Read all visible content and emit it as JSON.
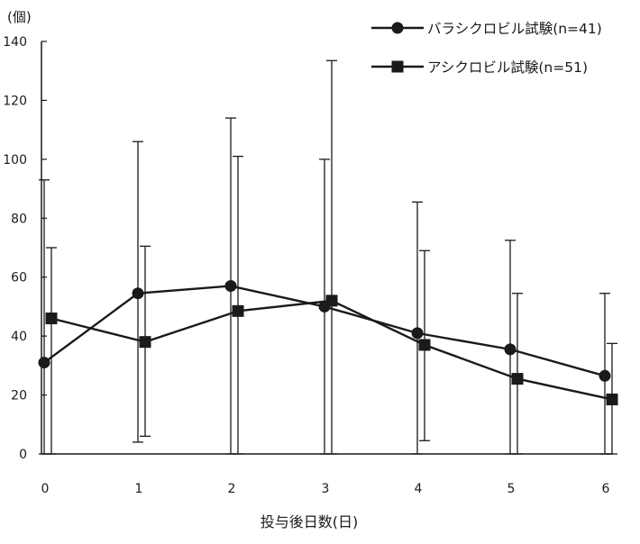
{
  "chart_data": {
    "type": "line",
    "xlabel": "投与後日数(日)",
    "ylabel": "(個)",
    "x": [
      0,
      1,
      2,
      3,
      4,
      5,
      6
    ],
    "xticks": [
      "0",
      "1",
      "2",
      "3",
      "4",
      "5",
      "6"
    ],
    "ylim": [
      0,
      140
    ],
    "yticks": [
      0,
      20,
      40,
      60,
      80,
      100,
      120,
      140
    ],
    "grid": false,
    "legend_position": "top-right",
    "series": [
      {
        "name": "バラシクロビル試験(n=41)",
        "marker": "circle",
        "color": "#1a1a1a",
        "values": [
          31,
          54.5,
          57,
          50,
          41,
          35.5,
          26.5
        ],
        "error_upper": [
          93,
          106,
          114,
          100,
          85.5,
          72.5,
          54.5
        ],
        "error_lower": [
          0,
          4,
          0,
          0,
          0,
          0,
          0
        ]
      },
      {
        "name": "アシクロビル試験(n=51)",
        "marker": "square",
        "color": "#1a1a1a",
        "values": [
          46,
          38,
          48.5,
          52,
          37,
          25.5,
          18.5
        ],
        "error_upper": [
          70,
          70.5,
          101,
          133.5,
          69,
          54.5,
          37.5
        ],
        "error_lower": [
          0,
          6,
          0,
          0,
          4.5,
          0,
          0
        ]
      }
    ]
  }
}
